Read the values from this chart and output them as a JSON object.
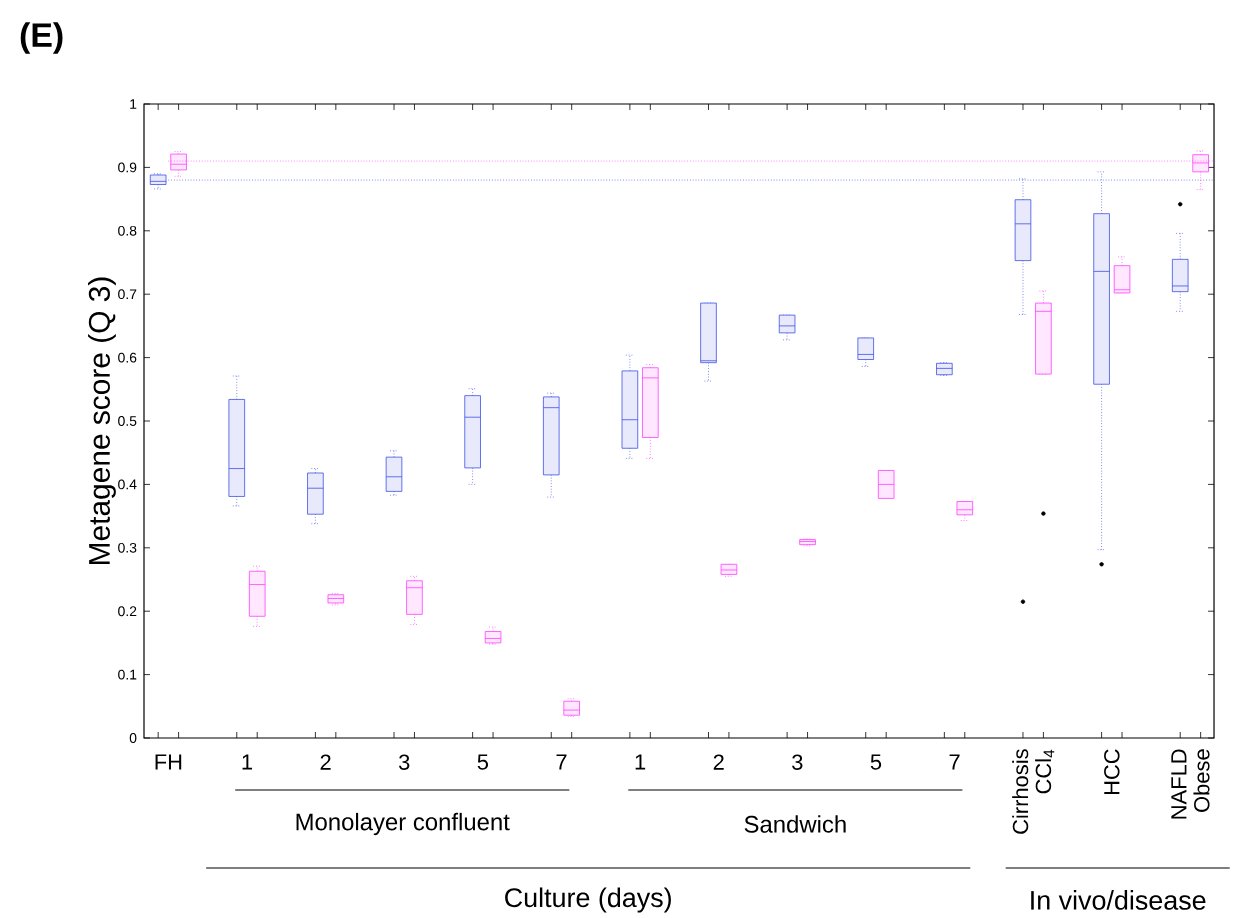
{
  "chart_data": {
    "type": "box",
    "title": "(E)",
    "ylabel": "Metagene score (Q 3)",
    "categories": [
      "FH",
      "1",
      "2",
      "3",
      "5",
      "7",
      "1",
      "2",
      "3",
      "5",
      "7",
      "Cirrhosis CCl$_{4}$",
      "HCC",
      "NAFLD Obese"
    ],
    "series": [
      {
        "color": "#3f51e6",
        "boxes": [
          {
            "low": 0.866,
            "q1": 0.873,
            "median": 0.878,
            "q3": 0.888,
            "high": 0.89
          },
          {
            "low": 0.366,
            "q1": 0.381,
            "median": 0.425,
            "q3": 0.534,
            "high": 0.571
          },
          {
            "low": 0.338,
            "q1": 0.353,
            "median": 0.394,
            "q3": 0.418,
            "high": 0.425
          },
          {
            "low": 0.383,
            "q1": 0.389,
            "median": 0.412,
            "q3": 0.443,
            "high": 0.453
          },
          {
            "low": 0.4,
            "q1": 0.426,
            "median": 0.506,
            "q3": 0.54,
            "high": 0.551
          },
          {
            "low": 0.38,
            "q1": 0.415,
            "median": 0.521,
            "q3": 0.538,
            "high": 0.544
          },
          {
            "low": 0.441,
            "q1": 0.457,
            "median": 0.502,
            "q3": 0.579,
            "high": 0.604
          },
          {
            "low": 0.563,
            "q1": 0.592,
            "median": 0.595,
            "q3": 0.686,
            "high": 0.686
          },
          {
            "low": 0.628,
            "q1": 0.639,
            "median": 0.65,
            "q3": 0.667,
            "high": 0.667
          },
          {
            "low": 0.586,
            "q1": 0.597,
            "median": 0.605,
            "q3": 0.631,
            "high": 0.631
          },
          {
            "low": 0.572,
            "q1": 0.573,
            "median": 0.583,
            "q3": 0.591,
            "high": 0.592
          },
          {
            "low": 0.668,
            "q1": 0.753,
            "median": 0.811,
            "q3": 0.849,
            "high": 0.882,
            "outliers": [
              0.215
            ]
          },
          {
            "low": 0.297,
            "q1": 0.558,
            "median": 0.736,
            "q3": 0.827,
            "high": 0.893,
            "outliers": [
              0.274
            ]
          },
          {
            "low": 0.673,
            "q1": 0.704,
            "median": 0.713,
            "q3": 0.755,
            "high": 0.796,
            "outliers": [
              0.842
            ]
          }
        ]
      },
      {
        "color": "#ff40ff",
        "boxes": [
          {
            "low": 0.886,
            "q1": 0.896,
            "median": 0.905,
            "q3": 0.921,
            "high": 0.925
          },
          {
            "low": 0.176,
            "q1": 0.192,
            "median": 0.242,
            "q3": 0.263,
            "high": 0.271
          },
          {
            "low": 0.21,
            "q1": 0.213,
            "median": 0.22,
            "q3": 0.226,
            "high": 0.228
          },
          {
            "low": 0.179,
            "q1": 0.195,
            "median": 0.237,
            "q3": 0.248,
            "high": 0.255
          },
          {
            "low": 0.148,
            "q1": 0.15,
            "median": 0.157,
            "q3": 0.168,
            "high": 0.175
          },
          {
            "low": 0.034,
            "q1": 0.036,
            "median": 0.044,
            "q3": 0.058,
            "high": 0.062
          },
          {
            "low": 0.441,
            "q1": 0.474,
            "median": 0.568,
            "q3": 0.584,
            "high": 0.589
          },
          {
            "low": 0.255,
            "q1": 0.258,
            "median": 0.265,
            "q3": 0.274,
            "high": 0.274
          },
          {
            "low": 0.303,
            "q1": 0.305,
            "median": 0.31,
            "q3": 0.313,
            "high": 0.314
          },
          {
            "low": 0.378,
            "q1": 0.378,
            "median": 0.4,
            "q3": 0.422,
            "high": 0.422
          },
          {
            "low": 0.343,
            "q1": 0.352,
            "median": 0.36,
            "q3": 0.373,
            "high": 0.373
          },
          {
            "low": 0.574,
            "q1": 0.574,
            "median": 0.673,
            "q3": 0.686,
            "high": 0.705,
            "outliers": [
              0.354
            ]
          },
          {
            "low": 0.702,
            "q1": 0.702,
            "median": 0.707,
            "q3": 0.745,
            "high": 0.759
          },
          {
            "low": 0.865,
            "q1": 0.893,
            "median": 0.907,
            "q3": 0.92,
            "high": 0.926
          }
        ]
      }
    ],
    "ylim": [
      0,
      1
    ],
    "yticks": [
      0,
      0.1,
      0.2,
      0.3,
      0.4,
      0.5,
      0.6,
      0.7,
      0.8,
      0.9,
      1
    ],
    "ref_lines": [
      {
        "axis": "y",
        "value": 0.91,
        "color": "#ff40ff",
        "line_style": "dotted"
      },
      {
        "axis": "y",
        "value": 0.88,
        "color": "#3f51e6",
        "line_style": "dotted"
      }
    ],
    "annotations": [
      "Monolayer confluent",
      "Sandwich",
      "Culture (days)",
      "In vivo/disease"
    ]
  }
}
